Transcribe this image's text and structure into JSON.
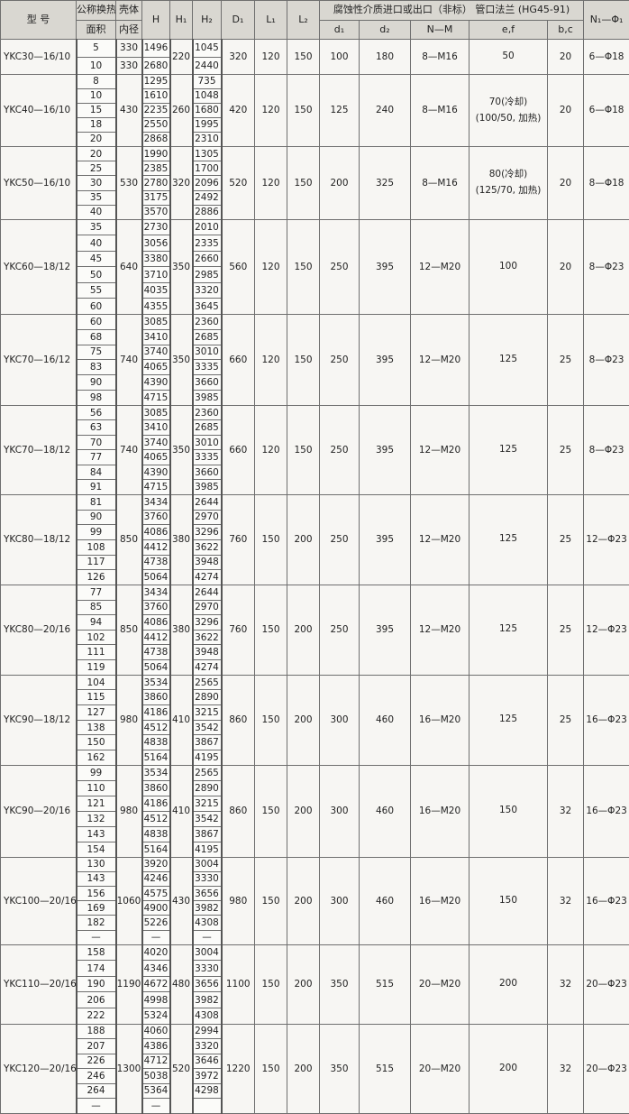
{
  "header": {
    "model": "型  号",
    "area_top": "公称换热",
    "area_bottom": "面积",
    "shell_top": "壳体",
    "shell_bottom": "内径",
    "H": "H",
    "H1": "H₁",
    "H2": "H₂",
    "D1": "D₁",
    "L1": "L₁",
    "L2": "L₂",
    "group_title": "腐蚀性介质进口或出口（非标）  管口法兰 (HG45-91)",
    "d1": "d₁",
    "d2": "d₂",
    "NM": "N—M",
    "ef": "e,f",
    "bc": "b,c",
    "N1": "N₁—Φ₁"
  },
  "groups": [
    {
      "model": "YKC30—16/10",
      "shell_per_row": [
        "330",
        "330"
      ],
      "H1": "220",
      "D1": "320",
      "L1": "120",
      "L2": "150",
      "d1": "100",
      "d2": "180",
      "NM": "8—M16",
      "ef": [
        "50"
      ],
      "bc": "20",
      "N1": "6—Φ18",
      "rows": [
        [
          "5",
          "1496",
          "1045"
        ],
        [
          "10",
          "2680",
          "2440"
        ]
      ]
    },
    {
      "model": "YKC40—16/10",
      "shell": "430",
      "H1": "260",
      "D1": "420",
      "L1": "120",
      "L2": "150",
      "d1": "125",
      "d2": "240",
      "NM": "8—M16",
      "ef": [
        "70(冷却)",
        "(100/50, 加热)"
      ],
      "bc": "20",
      "N1": "6—Φ18",
      "rows": [
        [
          "8",
          "1295",
          "735"
        ],
        [
          "10",
          "1610",
          "1048"
        ],
        [
          "15",
          "2235",
          "1680"
        ],
        [
          "18",
          "2550",
          "1995"
        ],
        [
          "20",
          "2868",
          "2310"
        ]
      ]
    },
    {
      "model": "YKC50—16/10",
      "shell": "530",
      "H1": "320",
      "D1": "520",
      "L1": "120",
      "L2": "150",
      "d1": "200",
      "d2": "325",
      "NM": "8—M16",
      "ef": [
        "80(冷却)",
        "(125/70, 加热)"
      ],
      "bc": "20",
      "N1": "8—Φ18",
      "rows": [
        [
          "20",
          "1990",
          "1305"
        ],
        [
          "25",
          "2385",
          "1700"
        ],
        [
          "30",
          "2780",
          "2096"
        ],
        [
          "35",
          "3175",
          "2492"
        ],
        [
          "40",
          "3570",
          "2886"
        ]
      ]
    },
    {
      "model": "YKC60—18/12",
      "shell": "640",
      "H1": "350",
      "D1": "560",
      "L1": "120",
      "L2": "150",
      "d1": "250",
      "d2": "395",
      "NM": "12—M20",
      "ef": [
        "100"
      ],
      "bc": "20",
      "N1": "8—Φ23",
      "rows": [
        [
          "35",
          "2730",
          "2010"
        ],
        [
          "40",
          "3056",
          "2335"
        ],
        [
          "45",
          "3380",
          "2660"
        ],
        [
          "50",
          "3710",
          "2985"
        ],
        [
          "55",
          "4035",
          "3320"
        ],
        [
          "60",
          "4355",
          "3645"
        ]
      ]
    },
    {
      "model": "YKC70—16/12",
      "shell": "740",
      "H1": "350",
      "D1": "660",
      "L1": "120",
      "L2": "150",
      "d1": "250",
      "d2": "395",
      "NM": "12—M20",
      "ef": [
        "125"
      ],
      "bc": "25",
      "N1": "8—Φ23",
      "rows": [
        [
          "60",
          "3085",
          "2360"
        ],
        [
          "68",
          "3410",
          "2685"
        ],
        [
          "75",
          "3740",
          "3010"
        ],
        [
          "83",
          "4065",
          "3335"
        ],
        [
          "90",
          "4390",
          "3660"
        ],
        [
          "98",
          "4715",
          "3985"
        ]
      ]
    },
    {
      "model": "YKC70—18/12",
      "shell": "740",
      "H1": "350",
      "D1": "660",
      "L1": "120",
      "L2": "150",
      "d1": "250",
      "d2": "395",
      "NM": "12—M20",
      "ef": [
        "125"
      ],
      "bc": "25",
      "N1": "8—Φ23",
      "rows": [
        [
          "56",
          "3085",
          "2360"
        ],
        [
          "63",
          "3410",
          "2685"
        ],
        [
          "70",
          "3740",
          "3010"
        ],
        [
          "77",
          "4065",
          "3335"
        ],
        [
          "84",
          "4390",
          "3660"
        ],
        [
          "91",
          "4715",
          "3985"
        ]
      ]
    },
    {
      "model": "YKC80—18/12",
      "shell": "850",
      "H1": "380",
      "D1": "760",
      "L1": "150",
      "L2": "200",
      "d1": "250",
      "d2": "395",
      "NM": "12—M20",
      "ef": [
        "125"
      ],
      "bc": "25",
      "N1": "12—Φ23",
      "rows": [
        [
          "81",
          "3434",
          "2644"
        ],
        [
          "90",
          "3760",
          "2970"
        ],
        [
          "99",
          "4086",
          "3296"
        ],
        [
          "108",
          "4412",
          "3622"
        ],
        [
          "117",
          "4738",
          "3948"
        ],
        [
          "126",
          "5064",
          "4274"
        ]
      ]
    },
    {
      "model": "YKC80—20/16",
      "shell": "850",
      "H1": "380",
      "D1": "760",
      "L1": "150",
      "L2": "200",
      "d1": "250",
      "d2": "395",
      "NM": "12—M20",
      "ef": [
        "125"
      ],
      "bc": "25",
      "N1": "12—Φ23",
      "rows": [
        [
          "77",
          "3434",
          "2644"
        ],
        [
          "85",
          "3760",
          "2970"
        ],
        [
          "94",
          "4086",
          "3296"
        ],
        [
          "102",
          "4412",
          "3622"
        ],
        [
          "111",
          "4738",
          "3948"
        ],
        [
          "119",
          "5064",
          "4274"
        ]
      ]
    },
    {
      "model": "YKC90—18/12",
      "shell": "980",
      "H1": "410",
      "D1": "860",
      "L1": "150",
      "L2": "200",
      "d1": "300",
      "d2": "460",
      "NM": "16—M20",
      "ef": [
        "125"
      ],
      "bc": "25",
      "N1": "16—Φ23",
      "rows": [
        [
          "104",
          "3534",
          "2565"
        ],
        [
          "115",
          "3860",
          "2890"
        ],
        [
          "127",
          "4186",
          "3215"
        ],
        [
          "138",
          "4512",
          "3542"
        ],
        [
          "150",
          "4838",
          "3867"
        ],
        [
          "162",
          "5164",
          "4195"
        ]
      ]
    },
    {
      "model": "YKC90—20/16",
      "shell": "980",
      "H1": "410",
      "D1": "860",
      "L1": "150",
      "L2": "200",
      "d1": "300",
      "d2": "460",
      "NM": "16—M20",
      "ef": [
        "150"
      ],
      "bc": "32",
      "N1": "16—Φ23",
      "rows": [
        [
          "99",
          "3534",
          "2565"
        ],
        [
          "110",
          "3860",
          "2890"
        ],
        [
          "121",
          "4186",
          "3215"
        ],
        [
          "132",
          "4512",
          "3542"
        ],
        [
          "143",
          "4838",
          "3867"
        ],
        [
          "154",
          "5164",
          "4195"
        ]
      ]
    },
    {
      "model": "YKC100—20/16",
      "shell": "1060",
      "H1": "430",
      "D1": "980",
      "L1": "150",
      "L2": "200",
      "d1": "300",
      "d2": "460",
      "NM": "16—M20",
      "ef": [
        "150"
      ],
      "bc": "32",
      "N1": "16—Φ23",
      "rows": [
        [
          "130",
          "3920",
          "3004"
        ],
        [
          "143",
          "4246",
          "3330"
        ],
        [
          "156",
          "4575",
          "3656"
        ],
        [
          "169",
          "4900",
          "3982"
        ],
        [
          "182",
          "5226",
          "4308"
        ],
        [
          "—",
          "—",
          "—"
        ]
      ]
    },
    {
      "model": "YKC110—20/16",
      "shell": "1190",
      "H1": "480",
      "D1": "1100",
      "L1": "150",
      "L2": "200",
      "d1": "350",
      "d2": "515",
      "NM": "20—M20",
      "ef": [
        "200"
      ],
      "bc": "32",
      "N1": "20—Φ23",
      "rows": [
        [
          "158",
          "4020",
          "3004"
        ],
        [
          "174",
          "4346",
          "3330"
        ],
        [
          "190",
          "4672",
          "3656"
        ],
        [
          "206",
          "4998",
          "3982"
        ],
        [
          "222",
          "5324",
          "4308"
        ]
      ]
    },
    {
      "model": "YKC120—20/16",
      "shell": "1300",
      "H1": "520",
      "D1": "1220",
      "L1": "150",
      "L2": "200",
      "d1": "350",
      "d2": "515",
      "NM": "20—M20",
      "ef": [
        "200"
      ],
      "bc": "32",
      "N1": "20—Φ23",
      "rows": [
        [
          "188",
          "4060",
          "2994"
        ],
        [
          "207",
          "4386",
          "3320"
        ],
        [
          "226",
          "4712",
          "3646"
        ],
        [
          "246",
          "5038",
          "3972"
        ],
        [
          "264",
          "5364",
          "4298"
        ],
        [
          "—",
          "—",
          ""
        ]
      ]
    }
  ]
}
